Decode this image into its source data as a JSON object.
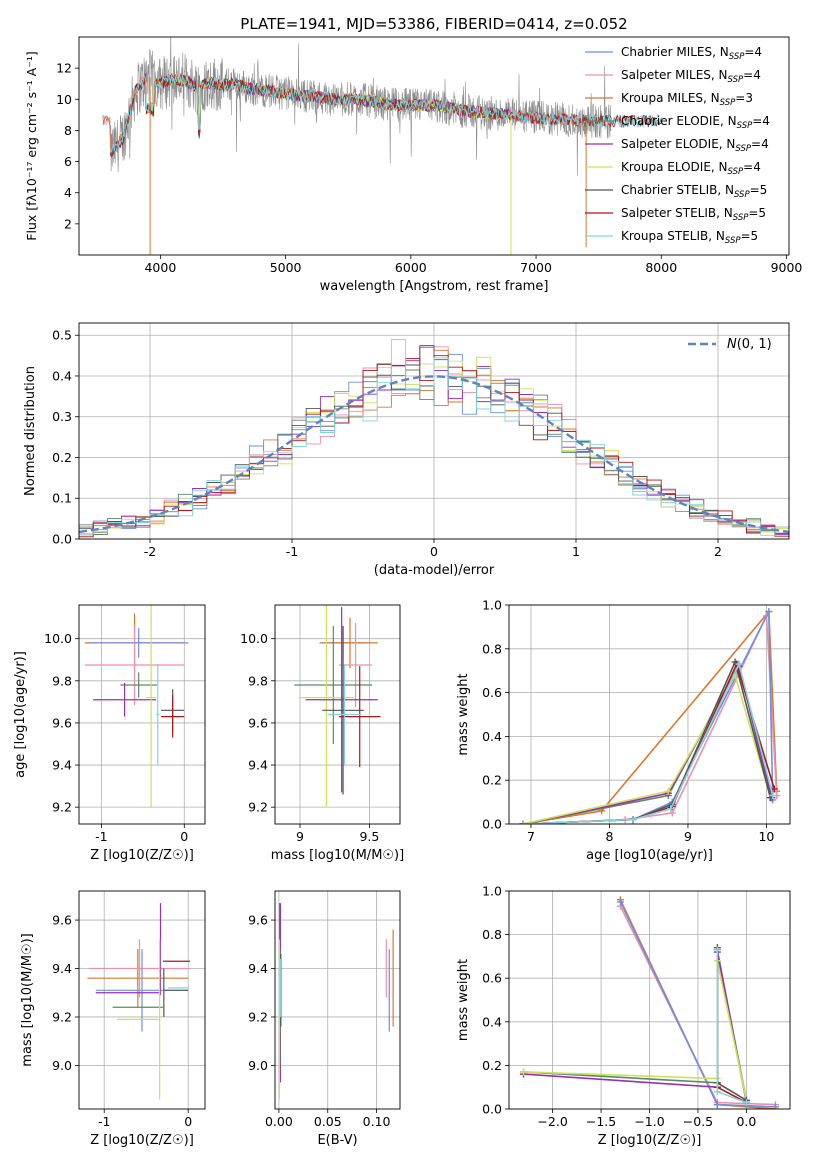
{
  "figure": {
    "title": "PLATE=1941, MJD=53386, FIBERID=0414, z=0.052"
  },
  "colors": {
    "Chabrier MILES": "#6f8fe0",
    "Salpeter MILES": "#ee8fb0",
    "Kroupa MILES": "#d9782e",
    "Chabrier ELODIE": "#5a8a6a",
    "Salpeter ELODIE": "#9a2fb0",
    "Kroupa ELODIE": "#cfe05a",
    "Chabrier STELIB": "#555555",
    "Salpeter STELIB": "#b01818",
    "Kroupa STELIB": "#7fd6de",
    "data": "#8c8c8c",
    "normal": "#5b84c8",
    "grid": "#b0b0b0"
  },
  "chart_data": [
    {
      "id": "spectrum",
      "type": "line",
      "xlabel": "wavelength [Angstrom, rest frame]",
      "ylabel": "Flux [fλ10⁻¹⁷ erg cm⁻² s⁻¹ A⁻¹]",
      "xlim": [
        3350,
        9020
      ],
      "ylim": [
        0,
        14
      ],
      "xticks": [
        4000,
        5000,
        6000,
        7000,
        8000,
        9000
      ],
      "yticks": [
        2,
        4,
        6,
        8,
        10,
        12
      ],
      "grid": false,
      "legend_loc": "upper right",
      "legend": [
        {
          "base": "Chabrier MILES, N",
          "sub": "SSP",
          "tail": "=4"
        },
        {
          "base": "Salpeter MILES, N",
          "sub": "SSP",
          "tail": "=4"
        },
        {
          "base": "Kroupa MILES, N",
          "sub": "SSP",
          "tail": "=3"
        },
        {
          "base": "Chabrier ELODIE, N",
          "sub": "SSP",
          "tail": "=4"
        },
        {
          "base": "Salpeter ELODIE, N",
          "sub": "SSP",
          "tail": "=4"
        },
        {
          "base": "Kroupa ELODIE, N",
          "sub": "SSP",
          "tail": "=4"
        },
        {
          "base": "Chabrier STELIB, N",
          "sub": "SSP",
          "tail": "=5"
        },
        {
          "base": "Salpeter STELIB, N",
          "sub": "SSP",
          "tail": "=5"
        },
        {
          "base": "Kroupa STELIB, N",
          "sub": "SSP",
          "tail": "=5"
        }
      ],
      "data_curve": {
        "x": [
          3600,
          3700,
          3800,
          3900,
          4000,
          4100,
          4200,
          4300,
          4400,
          4500,
          4600,
          4700,
          4800,
          4900,
          5000,
          5200,
          5400,
          5600,
          5800,
          6000,
          6200,
          6400,
          6600,
          6800,
          7000,
          7200,
          7400,
          7600
        ],
        "y": [
          6.5,
          7.5,
          10.5,
          11.5,
          11.0,
          11.3,
          11.2,
          10.8,
          11.1,
          10.9,
          11.0,
          10.7,
          10.6,
          10.5,
          10.4,
          10.2,
          10.0,
          10.0,
          9.7,
          9.6,
          9.6,
          9.3,
          9.1,
          9.0,
          8.8,
          8.7,
          8.6,
          8.6
        ],
        "noise": 1.4
      },
      "model_ranges": {
        "MILES": [
          3540,
          7400
        ],
        "ELODIE": [
          3900,
          6800
        ],
        "STELIB": [
          3600,
          8000
        ]
      }
    },
    {
      "id": "residuals",
      "type": "histogram",
      "xlabel": "(data-model)/error",
      "ylabel": "Normed distribution",
      "xlim": [
        -2.5,
        2.5
      ],
      "ylim": [
        0,
        0.53
      ],
      "xticks": [
        -2,
        -1,
        0,
        1,
        2
      ],
      "yticks": [
        0.0,
        0.1,
        0.2,
        0.3,
        0.4,
        0.5
      ],
      "grid": true,
      "legend_loc": "upper right",
      "normal_label": "N(0,1)",
      "bin_width": 0.1,
      "jitter": 0.03
    },
    {
      "id": "age-vs-Z",
      "type": "errorbar",
      "xlabel": "Z [log10(Z/Z☉)]",
      "ylabel": "age  [log10(age/yr)]",
      "xlim": [
        -1.27,
        0.25
      ],
      "ylim": [
        9.12,
        10.16
      ],
      "xticks": [
        -1,
        0
      ],
      "yticks": [
        9.2,
        9.4,
        9.6,
        9.8,
        10.0
      ],
      "grid": true,
      "points": [
        {
          "model": "Kroupa MILES",
          "x": -0.6,
          "xerr": 0.6,
          "y": 9.98,
          "yerr": 0.14
        },
        {
          "model": "Salpeter MILES",
          "x": -0.6,
          "xerr": 0.6,
          "y": 9.875,
          "yerr": 0.19
        },
        {
          "model": "Chabrier MILES",
          "x": -0.55,
          "xerr": 0.6,
          "y": 9.98,
          "yerr": 0.07
        },
        {
          "model": "Chabrier ELODIE",
          "x": -0.55,
          "xerr": 0.22,
          "y": 9.78,
          "yerr": 0.06
        },
        {
          "model": "Salpeter ELODIE",
          "x": -0.72,
          "xerr": 0.38,
          "y": 9.71,
          "yerr": 0.08
        },
        {
          "model": "Kroupa ELODIE",
          "x": -0.4,
          "xerr": 0.06,
          "y": 9.72,
          "yerr": 0.52
        },
        {
          "model": "Chabrier STELIB",
          "x": -0.14,
          "xerr": 0.14,
          "y": 9.66,
          "yerr": 0.1
        },
        {
          "model": "Salpeter STELIB",
          "x": -0.14,
          "xerr": 0.14,
          "y": 9.63,
          "yerr": 0.1
        },
        {
          "model": "Kroupa STELIB",
          "x": -0.32,
          "xerr": 0.02,
          "y": 9.64,
          "yerr": 0.24
        }
      ]
    },
    {
      "id": "age-vs-mass",
      "type": "errorbar",
      "xlabel": "mass [log10(M/M☉)]",
      "ylabel": "",
      "xlim": [
        8.82,
        9.72
      ],
      "ylim": [
        9.12,
        10.16
      ],
      "xticks": [
        9.0,
        9.5
      ],
      "yticks": [
        9.2,
        9.4,
        9.6,
        9.8,
        10.0
      ],
      "grid": true,
      "points": [
        {
          "model": "Chabrier MILES",
          "x": 9.31,
          "xerr": 0.17,
          "y": 9.98,
          "yerr": 0.08
        },
        {
          "model": "Kroupa MILES",
          "x": 9.36,
          "xerr": 0.2,
          "y": 9.98,
          "yerr": 0.12
        },
        {
          "model": "Salpeter MILES",
          "x": 9.4,
          "xerr": 0.12,
          "y": 9.875,
          "yerr": 0.2
        },
        {
          "model": "Chabrier ELODIE",
          "x": 9.24,
          "xerr": 0.28,
          "y": 9.78,
          "yerr": 0.28
        },
        {
          "model": "Kroupa ELODIE",
          "x": 9.19,
          "xerr": 0.2,
          "y": 9.72,
          "yerr": 0.52
        },
        {
          "model": "Salpeter ELODIE",
          "x": 9.3,
          "xerr": 0.26,
          "y": 9.71,
          "yerr": 0.44
        },
        {
          "model": "Chabrier STELIB",
          "x": 9.31,
          "xerr": 0.15,
          "y": 9.66,
          "yerr": 0.4
        },
        {
          "model": "Salpeter STELIB",
          "x": 9.43,
          "xerr": 0.15,
          "y": 9.63,
          "yerr": 0.24
        },
        {
          "model": "Kroupa STELIB",
          "x": 9.32,
          "xerr": 0.12,
          "y": 9.64,
          "yerr": 0.24
        }
      ]
    },
    {
      "id": "weight-vs-age",
      "type": "line",
      "xlabel": "age  [log10(age/yr)]",
      "ylabel": "mass weight",
      "xlim": [
        6.72,
        10.3
      ],
      "ylim": [
        0,
        1.0
      ],
      "xticks": [
        7,
        8,
        9,
        10
      ],
      "yticks": [
        0.0,
        0.2,
        0.4,
        0.6,
        0.8,
        1.0
      ],
      "grid": true,
      "series": [
        {
          "model": "Kroupa MILES",
          "x": [
            6.9,
            7.9,
            10.03,
            10.13
          ],
          "y": [
            0.0,
            0.06,
            0.97,
            0.15
          ]
        },
        {
          "model": "Salpeter MILES",
          "x": [
            6.9,
            8.2,
            8.8,
            10.0,
            10.13
          ],
          "y": [
            0.0,
            0.02,
            0.05,
            0.95,
            0.13
          ]
        },
        {
          "model": "Chabrier MILES",
          "x": [
            6.9,
            8.3,
            8.8,
            10.03,
            10.08
          ],
          "y": [
            0.0,
            0.02,
            0.1,
            0.97,
            0.11
          ]
        },
        {
          "model": "Chabrier ELODIE",
          "x": [
            6.9,
            8.75,
            9.65,
            10.05
          ],
          "y": [
            0.0,
            0.13,
            0.73,
            0.12
          ]
        },
        {
          "model": "Salpeter ELODIE",
          "x": [
            6.9,
            8.75,
            9.65,
            10.07
          ],
          "y": [
            0.0,
            0.14,
            0.72,
            0.12
          ]
        },
        {
          "model": "Kroupa ELODIE",
          "x": [
            6.9,
            8.75,
            9.6,
            10.05
          ],
          "y": [
            0.0,
            0.15,
            0.68,
            0.12
          ]
        },
        {
          "model": "Chabrier STELIB",
          "x": [
            6.9,
            8.3,
            8.8,
            9.6,
            10.05
          ],
          "y": [
            0.0,
            0.02,
            0.09,
            0.74,
            0.12
          ]
        },
        {
          "model": "Salpeter STELIB",
          "x": [
            6.9,
            8.3,
            8.8,
            9.62,
            10.1
          ],
          "y": [
            0.0,
            0.02,
            0.08,
            0.73,
            0.16
          ]
        },
        {
          "model": "Kroupa STELIB",
          "x": [
            6.9,
            8.3,
            8.78,
            9.65,
            10.08
          ],
          "y": [
            0.0,
            0.02,
            0.07,
            0.73,
            0.13
          ]
        }
      ]
    },
    {
      "id": "mass-vs-Z",
      "type": "errorbar",
      "xlabel": "Z [log10(Z/Z☉)]",
      "ylabel": "mass [log10(M/M☉)]",
      "xlim": [
        -1.3,
        0.2
      ],
      "ylim": [
        8.82,
        9.72
      ],
      "xticks": [
        -1,
        0
      ],
      "yticks": [
        9.0,
        9.2,
        9.4,
        9.6
      ],
      "grid": true,
      "points": [
        {
          "model": "Kroupa MILES",
          "x": -0.6,
          "xerr": 0.6,
          "y": 9.36,
          "yerr": 0.12
        },
        {
          "model": "Salpeter MILES",
          "x": -0.58,
          "xerr": 0.6,
          "y": 9.4,
          "yerr": 0.12
        },
        {
          "model": "Chabrier MILES",
          "x": -0.55,
          "xerr": 0.55,
          "y": 9.31,
          "yerr": 0.17
        },
        {
          "model": "Salpeter ELODIE",
          "x": -0.72,
          "xerr": 0.38,
          "y": 9.3,
          "yerr": 0.0
        },
        {
          "model": "Chabrier ELODIE",
          "x": -0.6,
          "xerr": 0.3,
          "y": 9.24,
          "yerr": 0.0
        },
        {
          "model": "Kroupa ELODIE",
          "x": -0.6,
          "xerr": 0.25,
          "y": 9.19,
          "yerr": 0.0
        },
        {
          "model": "Salpeter STELIB",
          "x": -0.14,
          "xerr": 0.16,
          "y": 9.43,
          "yerr": 0.0
        },
        {
          "model": "Chabrier STELIB",
          "x": -0.14,
          "xerr": 0.14,
          "y": 9.31,
          "yerr": 0.0
        },
        {
          "model": "Kroupa STELIB",
          "x": -0.12,
          "xerr": 0.12,
          "y": 9.32,
          "yerr": 0.0
        },
        {
          "model": "Salpeter ELODIE",
          "x": -0.33,
          "xerr": 0.0,
          "y": 9.48,
          "yerr": 0.19
        },
        {
          "model": "Kroupa ELODIE",
          "x": -0.34,
          "xerr": 0.0,
          "y": 9.19,
          "yerr": 0.33
        },
        {
          "model": "Chabrier STELIB",
          "x": -0.29,
          "xerr": 0.0,
          "y": 9.3,
          "yerr": 0.1
        }
      ]
    },
    {
      "id": "mass-vs-ebv",
      "type": "errorbar",
      "xlabel": "E(B-V)",
      "ylabel": "",
      "xlim": [
        -0.004,
        0.124
      ],
      "ylim": [
        8.82,
        9.72
      ],
      "xticks": [
        0.0,
        0.05,
        0.1
      ],
      "xtick_labels": [
        "0.00",
        "0.05",
        "0.10"
      ],
      "yticks": [
        9.0,
        9.2,
        9.4,
        9.6
      ],
      "grid": true,
      "points": [
        {
          "model": "Salpeter STELIB",
          "x": 0.001,
          "xerr": 0,
          "y": 9.43,
          "yerr": 0.24
        },
        {
          "model": "Salpeter ELODIE",
          "x": 0.0015,
          "xerr": 0,
          "y": 9.3,
          "yerr": 0.37
        },
        {
          "model": "Chabrier ELODIE",
          "x": 0.001,
          "xerr": 0,
          "y": 9.24,
          "yerr": 0.24
        },
        {
          "model": "Kroupa ELODIE",
          "x": 0.0005,
          "xerr": 0,
          "y": 9.19,
          "yerr": 0.33
        },
        {
          "model": "Chabrier STELIB",
          "x": 0.002,
          "xerr": 0,
          "y": 9.31,
          "yerr": 0.15
        },
        {
          "model": "Kroupa STELIB",
          "x": 0.0015,
          "xerr": 0,
          "y": 9.32,
          "yerr": 0.12
        },
        {
          "model": "Salpeter MILES",
          "x": 0.11,
          "xerr": 0,
          "y": 9.4,
          "yerr": 0.12
        },
        {
          "model": "Chabrier MILES",
          "x": 0.113,
          "xerr": 0,
          "y": 9.31,
          "yerr": 0.17
        },
        {
          "model": "Kroupa MILES",
          "x": 0.117,
          "xerr": 0,
          "y": 9.36,
          "yerr": 0.2
        }
      ]
    },
    {
      "id": "weight-vs-Z",
      "type": "line",
      "xlabel": "Z [log10(Z/Z☉)]",
      "ylabel": "mass weight",
      "xlim": [
        -2.45,
        0.45
      ],
      "ylim": [
        0,
        1.0
      ],
      "xticks": [
        -2.0,
        -1.5,
        -1.0,
        -0.5,
        0.0
      ],
      "xtick_labels": [
        "−2.0",
        "−1.5",
        "−1.0",
        "−0.5",
        "0.0"
      ],
      "yticks": [
        0.0,
        0.2,
        0.4,
        0.6,
        0.8,
        1.0
      ],
      "grid": true,
      "series": [
        {
          "model": "Kroupa MILES",
          "x": [
            -1.3,
            -0.3,
            0.3
          ],
          "y": [
            0.96,
            0.02,
            0.0
          ]
        },
        {
          "model": "Salpeter MILES",
          "x": [
            -1.3,
            -0.3,
            0.3
          ],
          "y": [
            0.93,
            0.03,
            0.02
          ]
        },
        {
          "model": "Chabrier MILES",
          "x": [
            -1.3,
            -0.3,
            0.3
          ],
          "y": [
            0.95,
            0.02,
            0.01
          ]
        },
        {
          "model": "Chabrier ELODIE",
          "x": [
            -2.3,
            -0.3,
            -0.3,
            0.0
          ],
          "y": [
            0.17,
            0.12,
            0.73,
            0.04
          ]
        },
        {
          "model": "Salpeter ELODIE",
          "x": [
            -2.3,
            -0.3,
            -0.3,
            0.0
          ],
          "y": [
            0.16,
            0.1,
            0.72,
            0.03
          ]
        },
        {
          "model": "Kroupa ELODIE",
          "x": [
            -2.3,
            -0.3,
            -0.3,
            0.0
          ],
          "y": [
            0.17,
            0.14,
            0.68,
            0.04
          ]
        },
        {
          "model": "Chabrier STELIB",
          "x": [
            -0.3,
            -0.3,
            0.0
          ],
          "y": [
            0.74,
            0.12,
            0.04
          ]
        },
        {
          "model": "Salpeter STELIB",
          "x": [
            -0.3,
            -0.3,
            0.0
          ],
          "y": [
            0.73,
            0.1,
            0.03
          ]
        },
        {
          "model": "Kroupa STELIB",
          "x": [
            -0.3,
            -0.3,
            0.0
          ],
          "y": [
            0.73,
            0.08,
            0.03
          ]
        }
      ]
    }
  ]
}
